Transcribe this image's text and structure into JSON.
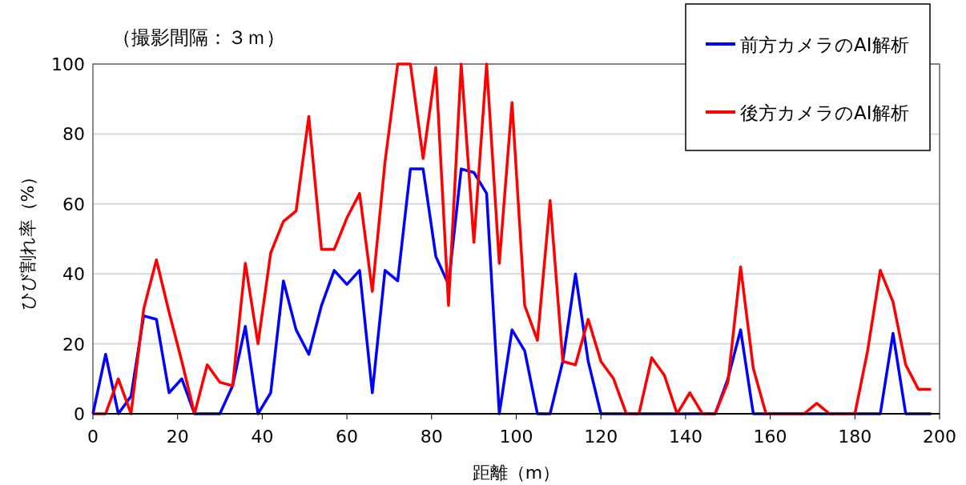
{
  "chart_data": {
    "type": "line",
    "title": "（撮影間隔：３ｍ）",
    "xlabel": "距離（m）",
    "ylabel": "ひび割れ率（%）",
    "x": [
      0,
      3,
      6,
      9,
      12,
      15,
      18,
      21,
      24,
      27,
      30,
      33,
      36,
      39,
      42,
      45,
      48,
      51,
      54,
      57,
      60,
      63,
      66,
      69,
      72,
      75,
      78,
      81,
      84,
      87,
      90,
      93,
      96,
      99,
      102,
      105,
      108,
      111,
      114,
      117,
      120,
      123,
      126,
      129,
      132,
      135,
      138,
      141,
      144,
      147,
      150,
      153,
      156,
      159,
      162,
      165,
      168,
      171,
      174,
      177,
      180,
      183,
      186,
      189,
      192,
      195,
      198
    ],
    "series": [
      {
        "name": "前方カメラのAI解析",
        "color": "#0000ff",
        "values": [
          0,
          17,
          0,
          5,
          28,
          27,
          6,
          10,
          0,
          0,
          0,
          8,
          25,
          0,
          6,
          38,
          24,
          17,
          31,
          41,
          37,
          41,
          6,
          41,
          38,
          70,
          70,
          45,
          37,
          70,
          69,
          63,
          0,
          24,
          18,
          0,
          0,
          15,
          40,
          15,
          0,
          0,
          0,
          0,
          0,
          0,
          0,
          0,
          0,
          0,
          10,
          24,
          0,
          0,
          0,
          0,
          0,
          0,
          0,
          0,
          0,
          0,
          0,
          23,
          0,
          0,
          0
        ]
      },
      {
        "name": "後方カメラのAI解析",
        "color": "#ff0000",
        "values": [
          0,
          0,
          10,
          0,
          30,
          44,
          29,
          15,
          0,
          14,
          9,
          8,
          43,
          20,
          46,
          55,
          58,
          85,
          47,
          47,
          56,
          63,
          35,
          72,
          100,
          100,
          73,
          99,
          31,
          100,
          49,
          100,
          43,
          89,
          31,
          21,
          61,
          15,
          14,
          27,
          15,
          10,
          0,
          0,
          16,
          11,
          0,
          6,
          0,
          0,
          9,
          42,
          13,
          0,
          0,
          0,
          0,
          3,
          0,
          0,
          0,
          18,
          41,
          32,
          14,
          7,
          7
        ]
      }
    ],
    "xlim": [
      0,
      200
    ],
    "xticks": [
      0,
      20,
      40,
      60,
      80,
      100,
      120,
      140,
      160,
      180,
      200
    ],
    "ylim": [
      0,
      100
    ],
    "yticks": [
      0,
      20,
      40,
      60,
      80,
      100
    ],
    "grid": "y",
    "legend": "top right",
    "line_style": "solid",
    "marker": "none"
  }
}
